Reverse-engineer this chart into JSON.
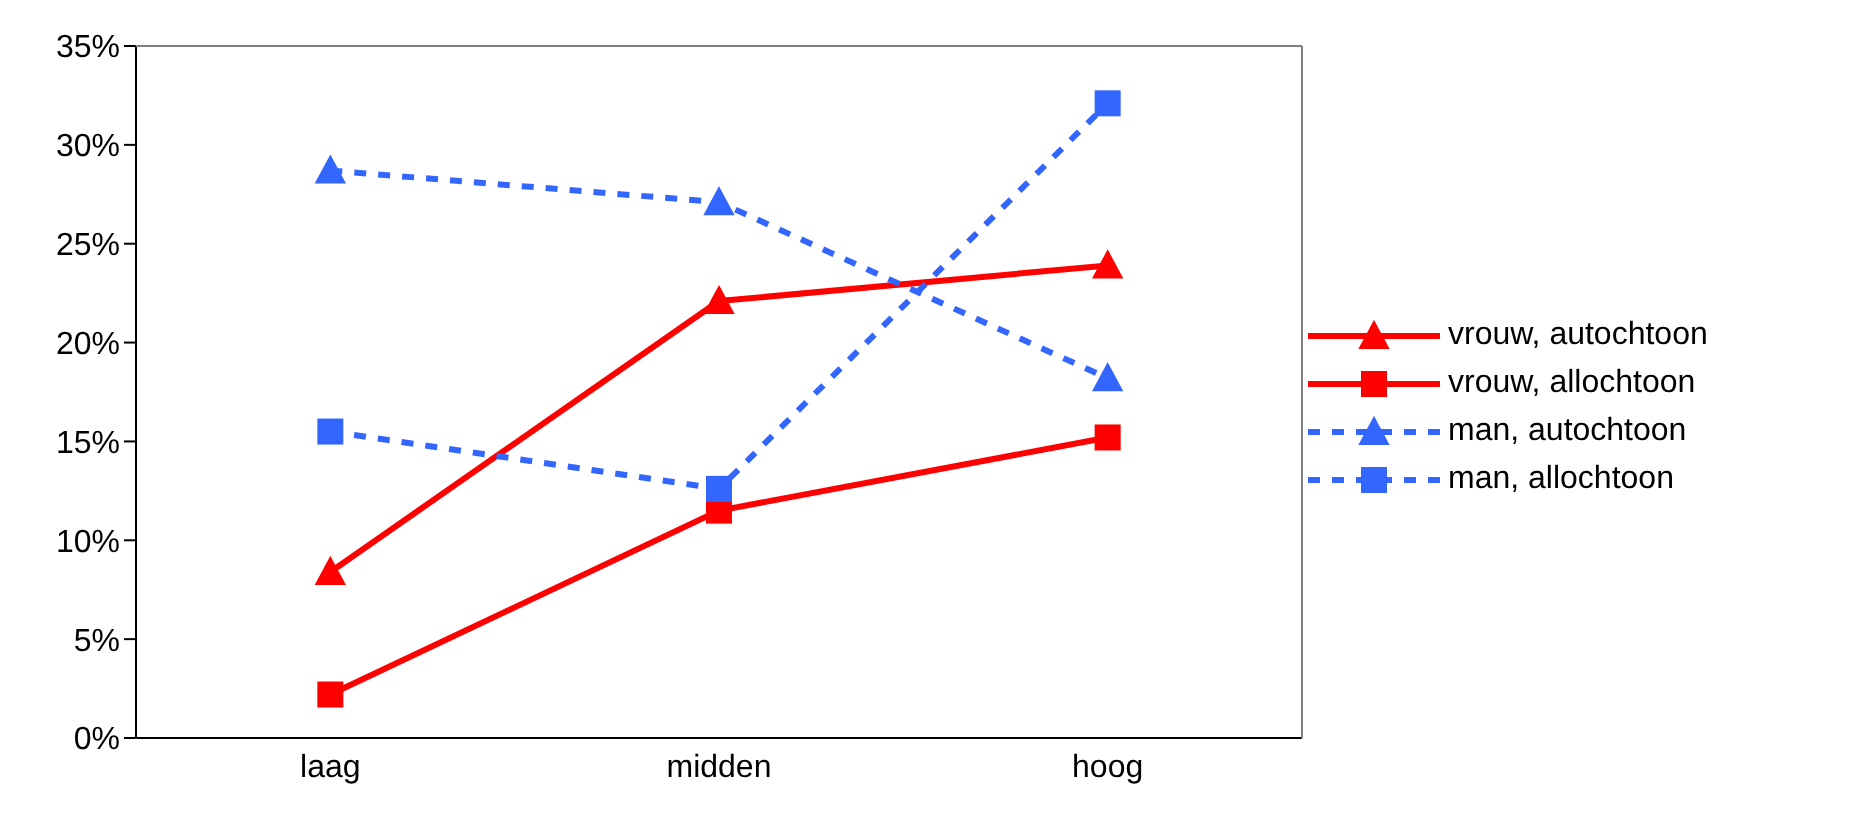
{
  "chart_data": {
    "type": "line",
    "categories": [
      "laag",
      "midden",
      "hoog"
    ],
    "series": [
      {
        "name": "vrouw, autochtoon",
        "color": "#ff0000",
        "marker": "triangle",
        "line_style": "solid",
        "values": [
          8.4,
          22.1,
          23.9
        ]
      },
      {
        "name": "vrouw, allochtoon",
        "color": "#ff0000",
        "marker": "square",
        "line_style": "solid",
        "values": [
          2.2,
          11.5,
          15.2
        ]
      },
      {
        "name": "man, autochtoon",
        "color": "#3366ff",
        "marker": "triangle",
        "line_style": "dashed",
        "values": [
          28.7,
          27.1,
          18.2
        ]
      },
      {
        "name": "man, allochtoon",
        "color": "#3366ff",
        "marker": "square",
        "line_style": "dashed",
        "values": [
          15.5,
          12.6,
          32.1
        ]
      }
    ],
    "ylim": [
      0,
      35
    ],
    "yticks": [
      {
        "value": 0,
        "label": "0%"
      },
      {
        "value": 5,
        "label": "5%"
      },
      {
        "value": 10,
        "label": "10%"
      },
      {
        "value": 15,
        "label": "15%"
      },
      {
        "value": 20,
        "label": "20%"
      },
      {
        "value": 25,
        "label": "25%"
      },
      {
        "value": 30,
        "label": "30%"
      },
      {
        "value": 35,
        "label": "35%"
      }
    ],
    "grid": false,
    "legend": "right"
  }
}
